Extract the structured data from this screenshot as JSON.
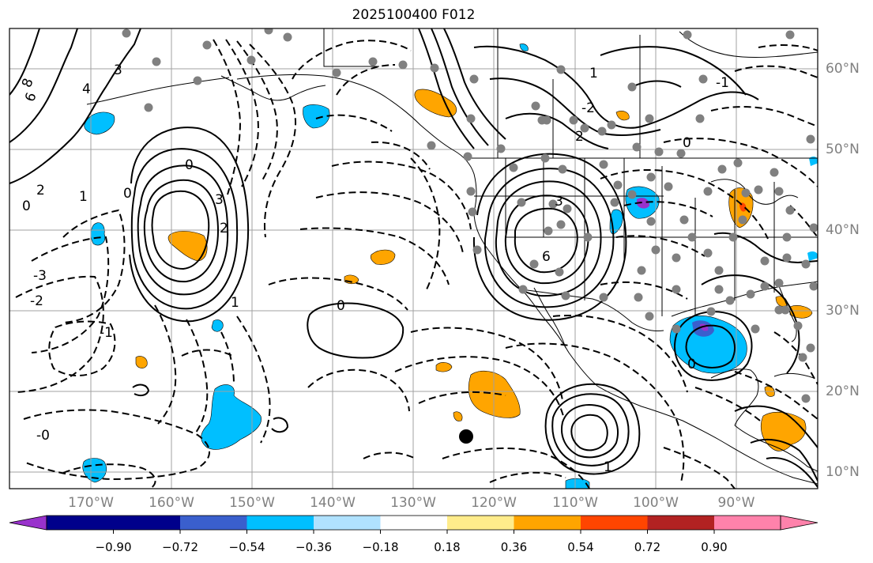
{
  "title": "2025100400 F012",
  "latitude_labels": [
    "60°N",
    "50°N",
    "40°N",
    "30°N",
    "20°N",
    "10°N"
  ],
  "longitude_labels": [
    "170°W",
    "160°W",
    "150°W",
    "140°W",
    "130°W",
    "120°W",
    "110°W",
    "100°W",
    "90°W"
  ],
  "colorbar": {
    "tick_labels": [
      "−0.90",
      "−0.72",
      "−0.54",
      "−0.36",
      "−0.18",
      "0.18",
      "0.36",
      "0.54",
      "0.72",
      "0.90"
    ],
    "colors": [
      "#9932CC",
      "#00008B",
      "#3A5FCD",
      "#00BFFF",
      "#B0E2FF",
      "#FFFFFF",
      "#FFEC8B",
      "#FFA500",
      "#FF4500",
      "#B22222",
      "#FF82AB"
    ]
  },
  "contour_labels": [
    "8",
    "6",
    "4",
    "3",
    "2",
    "1",
    "0",
    "-1",
    "-2",
    "-3",
    "0",
    "0",
    "3",
    "2",
    "1",
    "0",
    "3",
    "6",
    "0",
    "1",
    "2",
    "-2",
    "-1",
    "-0",
    "0",
    "1"
  ],
  "colors": {
    "positive_shading": "#FFA500",
    "negative_shading": "#00BFFF",
    "station_dot": "#808080",
    "contour": "#000000",
    "grid": "#A0A0A0"
  }
}
